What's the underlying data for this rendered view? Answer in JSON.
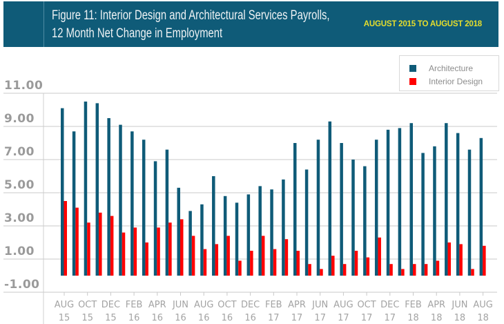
{
  "header": {
    "title_line1": "Figure 11: Interior Design and Architectural Services Payrolls,",
    "title_line2": "12 Month Net Change in Employment",
    "date_range": "AUGUST 2015 TO AUGUST 2018",
    "background_color": "#0f5b78",
    "date_range_color": "#e6de2c"
  },
  "chart_data": {
    "type": "bar",
    "title": "Figure 11: Interior Design and Architectural Services Payrolls, 12 Month Net Change in Employment",
    "subtitle": "AUGUST 2015 TO AUGUST 2018",
    "xlabel": "",
    "ylabel": "",
    "ylim": [
      -1,
      11
    ],
    "yticks": [
      "11.00",
      "9.00",
      "7.00",
      "5.00",
      "3.00",
      "1.00",
      "-1.00"
    ],
    "ytick_values": [
      11,
      9,
      7,
      5,
      3,
      1,
      -1
    ],
    "grid": true,
    "legend_position": "top-right",
    "x_tick_labels": [
      {
        "month": "AUG",
        "year": "15"
      },
      {
        "month": "OCT",
        "year": "15"
      },
      {
        "month": "DEC",
        "year": "15"
      },
      {
        "month": "FEB",
        "year": "16"
      },
      {
        "month": "APR",
        "year": "16"
      },
      {
        "month": "JUN",
        "year": "16"
      },
      {
        "month": "AUG",
        "year": "16"
      },
      {
        "month": "OCT",
        "year": "16"
      },
      {
        "month": "DEC",
        "year": "16"
      },
      {
        "month": "FEB",
        "year": "17"
      },
      {
        "month": "APR",
        "year": "17"
      },
      {
        "month": "JUN",
        "year": "17"
      },
      {
        "month": "AUG",
        "year": "17"
      },
      {
        "month": "OCT",
        "year": "17"
      },
      {
        "month": "DEC",
        "year": "17"
      },
      {
        "month": "FEB",
        "year": "18"
      },
      {
        "month": "APR",
        "year": "18"
      },
      {
        "month": "JUN",
        "year": "18"
      },
      {
        "month": "AUG",
        "year": "18"
      }
    ],
    "categories": [
      "Aug 2015",
      "Sep 2015",
      "Oct 2015",
      "Nov 2015",
      "Dec 2015",
      "Jan 2016",
      "Feb 2016",
      "Mar 2016",
      "Apr 2016",
      "May 2016",
      "Jun 2016",
      "Jul 2016",
      "Aug 2016",
      "Sep 2016",
      "Oct 2016",
      "Nov 2016",
      "Dec 2016",
      "Jan 2017",
      "Feb 2017",
      "Mar 2017",
      "Apr 2017",
      "May 2017",
      "Jun 2017",
      "Jul 2017",
      "Aug 2017",
      "Sep 2017",
      "Oct 2017",
      "Nov 2017",
      "Dec 2017",
      "Jan 2018",
      "Feb 2018",
      "Mar 2018",
      "Apr 2018",
      "May 2018",
      "Jun 2018",
      "Jul 2018",
      "Aug 2018"
    ],
    "series": [
      {
        "name": "Architecture",
        "color": "#0f5b78",
        "values": [
          10.1,
          8.7,
          10.5,
          10.4,
          9.5,
          9.1,
          8.7,
          8.2,
          6.9,
          7.6,
          5.3,
          3.9,
          4.3,
          6.0,
          4.8,
          4.4,
          4.9,
          5.4,
          5.2,
          5.8,
          8.0,
          6.4,
          8.2,
          9.3,
          8.0,
          7.0,
          6.6,
          8.2,
          8.8,
          8.9,
          9.2,
          7.4,
          7.8,
          9.2,
          8.6,
          7.6,
          8.3
        ]
      },
      {
        "name": "Interior Design",
        "color": "#ff0000",
        "values": [
          4.5,
          4.1,
          3.2,
          3.8,
          3.6,
          2.6,
          2.9,
          2.0,
          2.9,
          3.2,
          3.4,
          2.4,
          1.6,
          1.9,
          2.4,
          0.9,
          1.5,
          2.4,
          1.6,
          2.2,
          1.5,
          0.7,
          0.4,
          1.2,
          0.7,
          1.5,
          1.1,
          2.3,
          0.7,
          0.4,
          0.7,
          0.7,
          0.9,
          2.0,
          1.9,
          0.4,
          1.8
        ]
      }
    ]
  },
  "legend": {
    "items": [
      {
        "label": "Architecture",
        "color": "#0f5b78"
      },
      {
        "label": "Interior Design",
        "color": "#ff0000"
      }
    ]
  }
}
